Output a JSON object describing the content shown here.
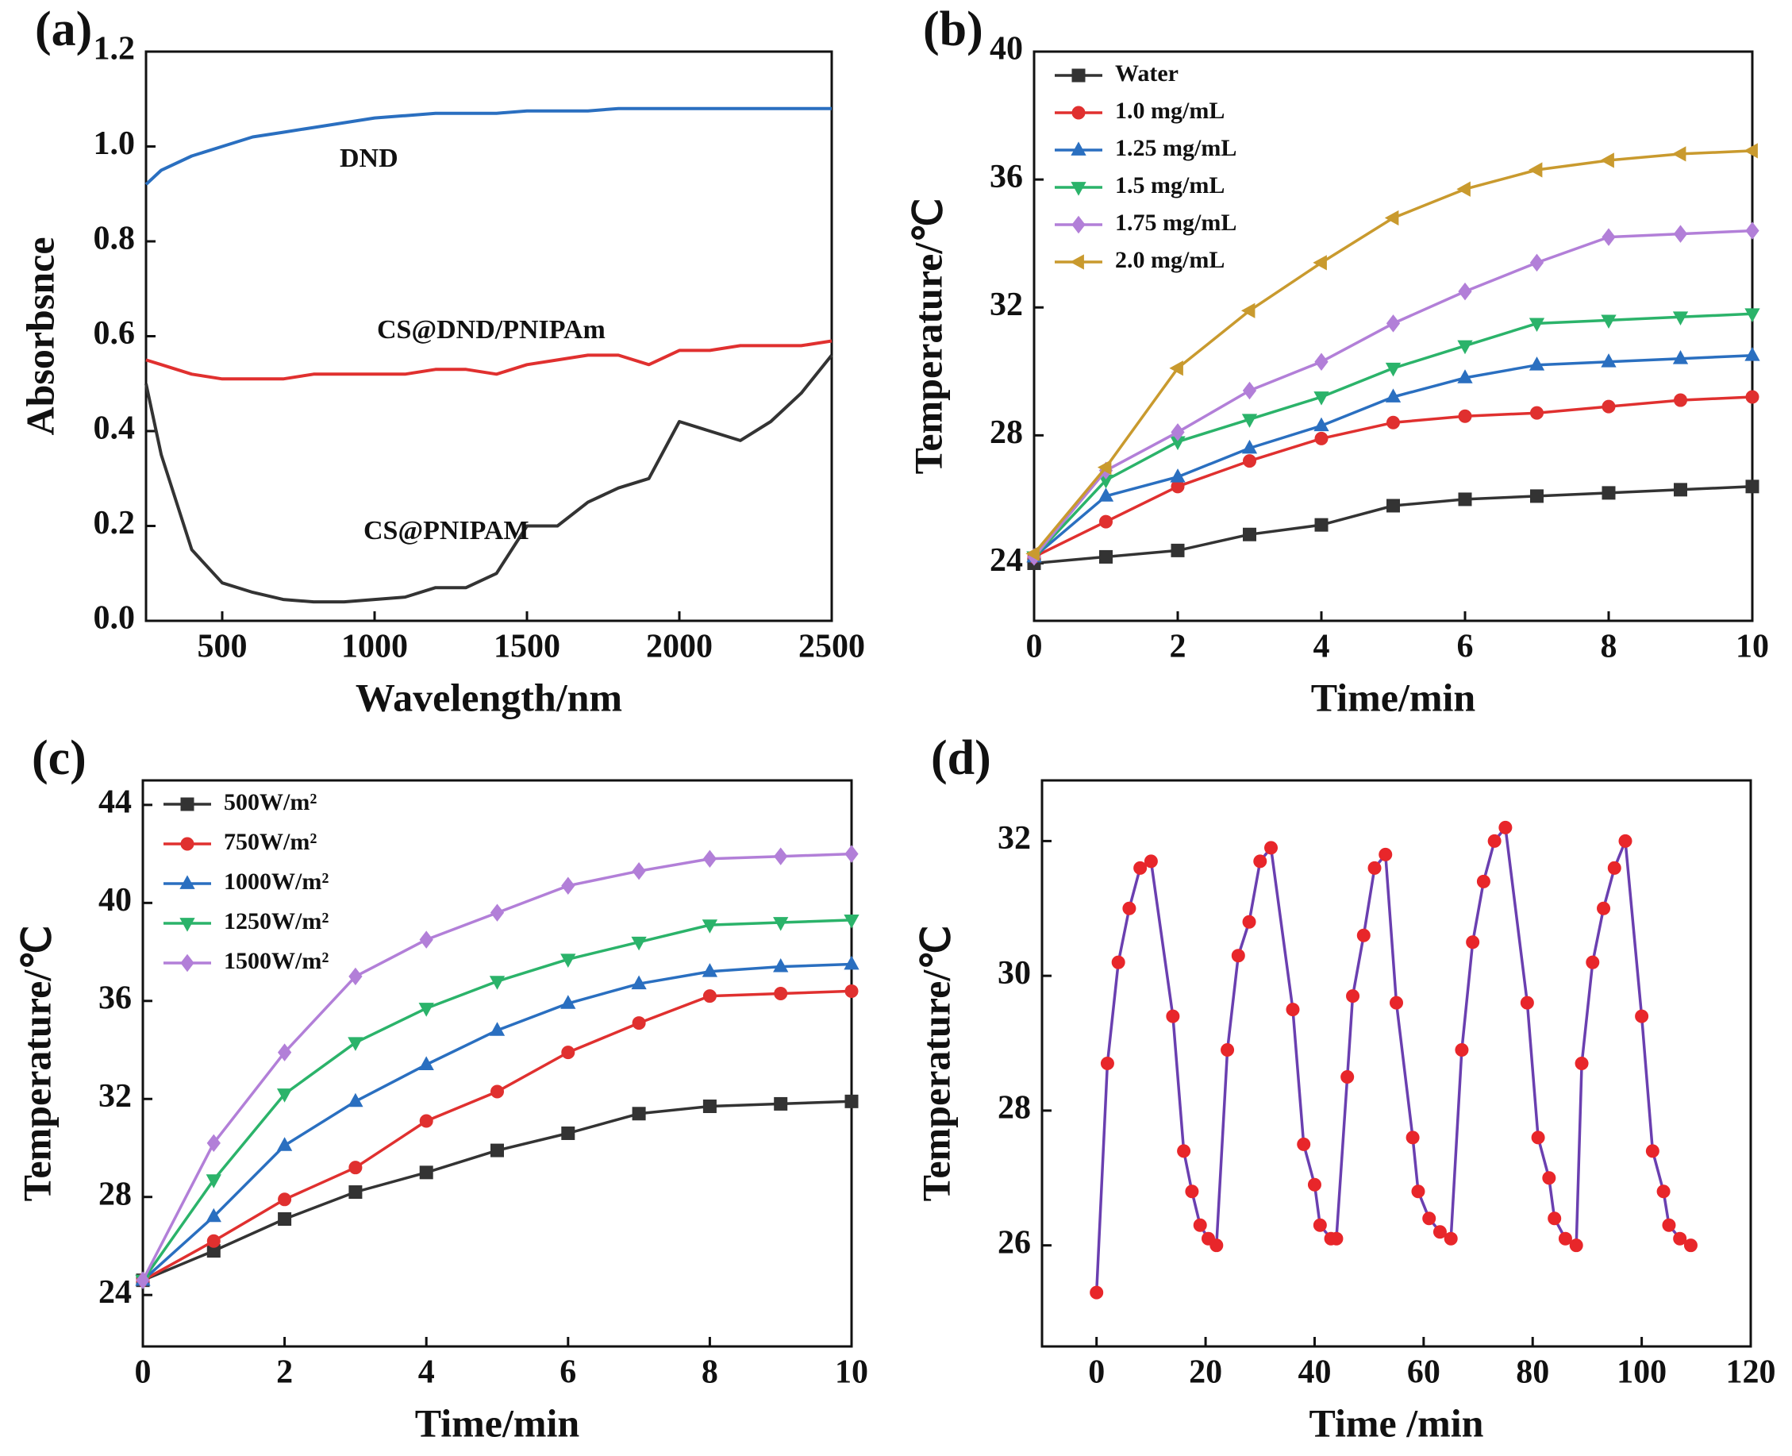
{
  "chart_data": [
    {
      "type": "line",
      "label": "(a)",
      "x_label": "Wavelength/nm",
      "y_label": "Absorbsnce",
      "xlim": [
        250,
        2500
      ],
      "ylim": [
        0,
        1.2
      ],
      "xticks": [
        500,
        1000,
        1500,
        2000,
        2500
      ],
      "yticks": [
        {
          "value": 0,
          "label": "0.0"
        },
        0.2,
        0.4,
        0.6,
        0.8,
        {
          "value": 1,
          "label": "1.0"
        },
        1.2
      ],
      "legend": "inline",
      "x": [
        250,
        300,
        400,
        500,
        600,
        700,
        800,
        900,
        1000,
        1100,
        1200,
        1300,
        1400,
        1500,
        1600,
        1700,
        1800,
        1900,
        2000,
        2100,
        2200,
        2300,
        2400,
        2500
      ],
      "series": [
        {
          "name": "DND",
          "color": "#2a6fc0",
          "values": [
            0.92,
            0.95,
            0.98,
            1.0,
            1.02,
            1.03,
            1.04,
            1.05,
            1.06,
            1.065,
            1.07,
            1.07,
            1.07,
            1.075,
            1.075,
            1.075,
            1.08,
            1.08,
            1.08,
            1.08,
            1.08,
            1.08,
            1.08,
            1.08
          ]
        },
        {
          "name": "CS@DND/PNIPAm",
          "color": "#e0302f",
          "values": [
            0.55,
            0.54,
            0.52,
            0.51,
            0.51,
            0.51,
            0.52,
            0.52,
            0.52,
            0.52,
            0.53,
            0.53,
            0.52,
            0.54,
            0.55,
            0.56,
            0.56,
            0.54,
            0.57,
            0.57,
            0.58,
            0.58,
            0.58,
            0.59
          ]
        },
        {
          "name": "CS@PNIPAM",
          "color": "#333333",
          "values": [
            0.5,
            0.35,
            0.15,
            0.08,
            0.06,
            0.045,
            0.04,
            0.04,
            0.045,
            0.05,
            0.07,
            0.07,
            0.1,
            0.2,
            0.2,
            0.25,
            0.28,
            0.3,
            0.42,
            0.4,
            0.38,
            0.42,
            0.48,
            0.56
          ]
        }
      ]
    },
    {
      "type": "line",
      "label": "(b)",
      "x_label": "Time/min",
      "y_label": "Temperature/℃",
      "xlim": [
        0,
        10
      ],
      "ylim": [
        22.2,
        40
      ],
      "xticks": [
        0,
        2,
        4,
        6,
        8,
        10
      ],
      "yticks": [
        24,
        28,
        32,
        36,
        40
      ],
      "legend": "upper left",
      "x": [
        0,
        1,
        2,
        3,
        4,
        5,
        6,
        7,
        8,
        9,
        10
      ],
      "series": [
        {
          "name": "Water",
          "color": "#333333",
          "marker": "square",
          "values": [
            24.0,
            24.2,
            24.4,
            24.9,
            25.2,
            25.8,
            26.0,
            26.1,
            26.2,
            26.3,
            26.4
          ]
        },
        {
          "name": "1.0 mg/mL",
          "color": "#e0302f",
          "marker": "circle",
          "values": [
            24.2,
            25.3,
            26.4,
            27.2,
            27.9,
            28.4,
            28.6,
            28.7,
            28.9,
            29.1,
            29.2
          ]
        },
        {
          "name": "1.25 mg/mL",
          "color": "#2a6fc0",
          "marker": "triangle-up",
          "values": [
            24.2,
            26.1,
            26.7,
            27.6,
            28.3,
            29.2,
            29.8,
            30.2,
            30.3,
            30.4,
            30.5
          ]
        },
        {
          "name": "1.5 mg/mL",
          "color": "#2bb36a",
          "marker": "triangle-down",
          "values": [
            24.2,
            26.6,
            27.8,
            28.5,
            29.2,
            30.1,
            30.8,
            31.5,
            31.6,
            31.7,
            31.8
          ]
        },
        {
          "name": "1.75 mg/mL",
          "color": "#b27fd8",
          "marker": "diamond",
          "values": [
            24.2,
            26.9,
            28.1,
            29.4,
            30.3,
            31.5,
            32.5,
            33.4,
            34.2,
            34.3,
            34.4
          ]
        },
        {
          "name": "2.0 mg/mL",
          "color": "#c99a2e",
          "marker": "triangle-left",
          "values": [
            24.3,
            27.0,
            30.1,
            31.9,
            33.4,
            34.8,
            35.7,
            36.3,
            36.6,
            36.8,
            36.9
          ]
        }
      ]
    },
    {
      "type": "line",
      "label": "(c)",
      "x_label": "Time/min",
      "y_label": "Temperature/℃",
      "xlim": [
        0,
        10
      ],
      "ylim": [
        21.9,
        45
      ],
      "xticks": [
        0,
        2,
        4,
        6,
        8,
        10
      ],
      "yticks": [
        24,
        28,
        32,
        36,
        40,
        44
      ],
      "legend": "upper left",
      "x": [
        0,
        1,
        2,
        3,
        4,
        5,
        6,
        7,
        8,
        9,
        10
      ],
      "series": [
        {
          "name": "500W/m²",
          "color": "#333333",
          "marker": "square",
          "values": [
            24.6,
            25.8,
            27.1,
            28.2,
            29.0,
            29.9,
            30.6,
            31.4,
            31.7,
            31.8,
            31.9
          ]
        },
        {
          "name": "750W/m²",
          "color": "#e0302f",
          "marker": "circle",
          "values": [
            24.6,
            26.2,
            27.9,
            29.2,
            31.1,
            32.3,
            33.9,
            35.1,
            36.2,
            36.3,
            36.4
          ]
        },
        {
          "name": "1000W/m²",
          "color": "#2a6fc0",
          "marker": "triangle-up",
          "values": [
            24.6,
            27.2,
            30.1,
            31.9,
            33.4,
            34.8,
            35.9,
            36.7,
            37.2,
            37.4,
            37.5
          ]
        },
        {
          "name": "1250W/m²",
          "color": "#2bb36a",
          "marker": "triangle-down",
          "values": [
            24.6,
            28.7,
            32.2,
            34.3,
            35.7,
            36.8,
            37.7,
            38.4,
            39.1,
            39.2,
            39.3
          ]
        },
        {
          "name": "1500W/m²",
          "color": "#b27fd8",
          "marker": "diamond",
          "values": [
            24.6,
            30.2,
            33.9,
            37.0,
            38.5,
            39.6,
            40.7,
            41.3,
            41.8,
            41.9,
            42.0
          ]
        }
      ]
    },
    {
      "type": "line",
      "label": "(d)",
      "x_label": "Time /min",
      "y_label": "Temperature/℃",
      "xlim": [
        -10,
        120
      ],
      "ylim": [
        24.5,
        32.9
      ],
      "xticks": [
        0,
        20,
        40,
        60,
        80,
        100,
        120
      ],
      "yticks": [
        26,
        28,
        30,
        32
      ],
      "x": [
        0,
        2,
        4,
        6,
        8,
        10,
        14,
        16,
        17.5,
        19,
        20.5,
        22,
        24,
        26,
        28,
        30,
        32,
        36,
        38,
        40,
        41,
        43,
        44,
        46,
        47,
        49,
        51,
        53,
        55,
        58,
        59,
        61,
        63,
        65,
        67,
        69,
        71,
        73,
        75,
        79,
        81,
        83,
        84,
        86,
        88,
        89,
        91,
        93,
        95,
        97,
        100,
        102,
        104,
        105,
        107,
        109
      ],
      "series": [
        {
          "color": "#6a3fb0",
          "marker": "circle",
          "marker_color": "#e8262a",
          "values": [
            25.3,
            28.7,
            30.2,
            31.0,
            31.6,
            31.7,
            29.4,
            27.4,
            26.8,
            26.3,
            26.1,
            26.0,
            28.9,
            30.3,
            30.8,
            31.7,
            31.9,
            29.5,
            27.5,
            26.9,
            26.3,
            26.1,
            26.1,
            28.5,
            29.7,
            30.6,
            31.6,
            31.8,
            29.6,
            27.6,
            26.8,
            26.4,
            26.2,
            26.1,
            28.9,
            30.5,
            31.4,
            32.0,
            32.2,
            29.6,
            27.6,
            27.0,
            26.4,
            26.1,
            26.0,
            28.7,
            30.2,
            31.0,
            31.6,
            32.0,
            29.4,
            27.4,
            26.8,
            26.3,
            26.1,
            26.0
          ]
        }
      ]
    }
  ]
}
